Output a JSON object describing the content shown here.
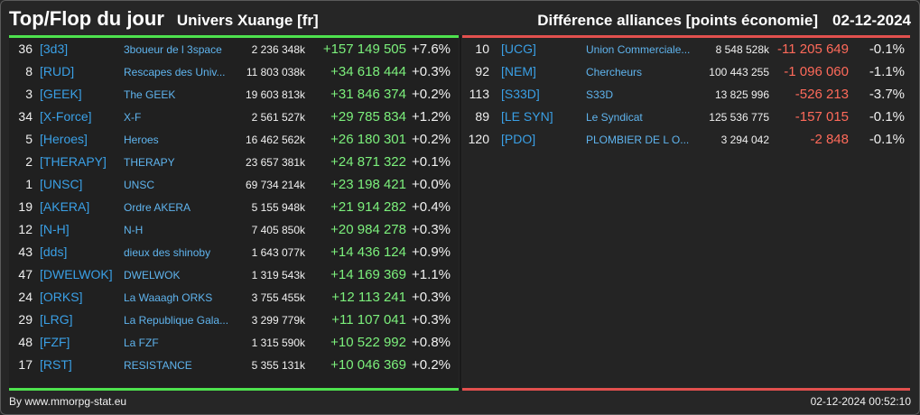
{
  "header": {
    "title": "Top/Flop du jour",
    "universe": "Univers Xuange [fr]",
    "category": "Différence alliances [points économie]",
    "date": "02-12-2024"
  },
  "top": [
    {
      "rank": "36",
      "tag": "[3d3]",
      "name": "3boueur de l 3space",
      "points": "2 236 348k",
      "diff": "+157 149 505",
      "pct": "+7.6%"
    },
    {
      "rank": "8",
      "tag": "[RUD]",
      "name": "Rescapes des Univ...",
      "points": "11 803 038k",
      "diff": "+34 618 444",
      "pct": "+0.3%"
    },
    {
      "rank": "3",
      "tag": "[GEEK]",
      "name": "The GEEK",
      "points": "19 603 813k",
      "diff": "+31 846 374",
      "pct": "+0.2%"
    },
    {
      "rank": "34",
      "tag": "[X-Force]",
      "name": "X-F",
      "points": "2 561 527k",
      "diff": "+29 785 834",
      "pct": "+1.2%"
    },
    {
      "rank": "5",
      "tag": "[Heroes]",
      "name": "Heroes",
      "points": "16 462 562k",
      "diff": "+26 180 301",
      "pct": "+0.2%"
    },
    {
      "rank": "2",
      "tag": "[THERAPY]",
      "name": "THERAPY",
      "points": "23 657 381k",
      "diff": "+24 871 322",
      "pct": "+0.1%"
    },
    {
      "rank": "1",
      "tag": "[UNSC]",
      "name": "UNSC",
      "points": "69 734 214k",
      "diff": "+23 198 421",
      "pct": "+0.0%"
    },
    {
      "rank": "19",
      "tag": "[AKERA]",
      "name": "Ordre AKERA",
      "points": "5 155 948k",
      "diff": "+21 914 282",
      "pct": "+0.4%"
    },
    {
      "rank": "12",
      "tag": "[N-H]",
      "name": "N-H",
      "points": "7 405 850k",
      "diff": "+20 984 278",
      "pct": "+0.3%"
    },
    {
      "rank": "43",
      "tag": "[dds]",
      "name": "dieux des shinoby",
      "points": "1 643 077k",
      "diff": "+14 436 124",
      "pct": "+0.9%"
    },
    {
      "rank": "47",
      "tag": "[DWELWOK]",
      "name": "DWELWOK",
      "points": "1 319 543k",
      "diff": "+14 169 369",
      "pct": "+1.1%"
    },
    {
      "rank": "24",
      "tag": "[ORKS]",
      "name": "La Waaagh ORKS",
      "points": "3 755 455k",
      "diff": "+12 113 241",
      "pct": "+0.3%"
    },
    {
      "rank": "29",
      "tag": "[LRG]",
      "name": "La Republique Gala...",
      "points": "3 299 779k",
      "diff": "+11 107 041",
      "pct": "+0.3%"
    },
    {
      "rank": "48",
      "tag": "[FZF]",
      "name": "La FZF",
      "points": "1 315 590k",
      "diff": "+10 522 992",
      "pct": "+0.8%"
    },
    {
      "rank": "17",
      "tag": "[RST]",
      "name": "RESISTANCE",
      "points": "5 355 131k",
      "diff": "+10 046 369",
      "pct": "+0.2%"
    }
  ],
  "flop": [
    {
      "rank": "10",
      "tag": "[UCG]",
      "name": "Union Commerciale...",
      "points": "8 548 528k",
      "diff": "-11 205 649",
      "pct": "-0.1%"
    },
    {
      "rank": "92",
      "tag": "[NEM]",
      "name": "Chercheurs",
      "points": "100 443 255",
      "diff": "-1 096 060",
      "pct": "-1.1%"
    },
    {
      "rank": "113",
      "tag": "[S33D]",
      "name": "S33D",
      "points": "13 825 996",
      "diff": "-526 213",
      "pct": "-3.7%"
    },
    {
      "rank": "89",
      "tag": "[LE SYN]",
      "name": "Le Syndicat",
      "points": "125 536 775",
      "diff": "-157 015",
      "pct": "-0.1%"
    },
    {
      "rank": "120",
      "tag": "[PDO]",
      "name": "PLOMBIER DE L O...",
      "points": "3 294 042",
      "diff": "-2 848",
      "pct": "-0.1%"
    }
  ],
  "footer": {
    "source": "By www.mmorpg-stat.eu",
    "timestamp": "02-12-2024 00:52:10"
  },
  "colors": {
    "top_accent": "#4ee24e",
    "flop_accent": "#e2504e",
    "tag": "#3aa0e6",
    "up": "#7cf07c",
    "down": "#ff6a5a"
  }
}
